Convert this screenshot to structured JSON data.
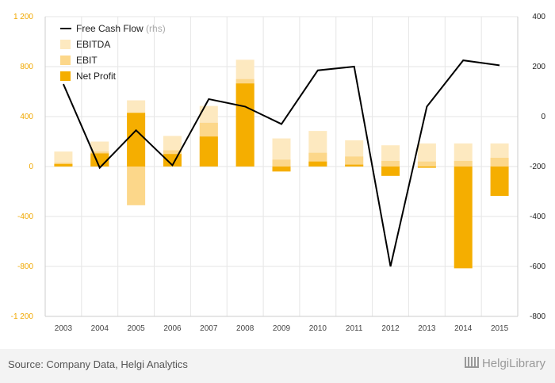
{
  "chart_data": {
    "type": "bar",
    "categories": [
      "2003",
      "2004",
      "2005",
      "2006",
      "2007",
      "2008",
      "2009",
      "2010",
      "2011",
      "2012",
      "2013",
      "2014",
      "2015"
    ],
    "series": [
      {
        "name": "EBITDA",
        "kind": "bar",
        "color": "#fde9c0",
        "values": [
          120,
          200,
          530,
          245,
          485,
          855,
          225,
          285,
          210,
          170,
          185,
          185,
          185
        ]
      },
      {
        "name": "EBIT",
        "kind": "bar",
        "color": "#fcd78a",
        "values": [
          30,
          120,
          -310,
          130,
          350,
          700,
          55,
          110,
          80,
          45,
          40,
          45,
          70
        ]
      },
      {
        "name": "Net Profit",
        "kind": "bar",
        "color": "#f5ae00",
        "values": [
          20,
          105,
          430,
          100,
          240,
          665,
          -40,
          40,
          15,
          -75,
          -10,
          -815,
          -235
        ]
      },
      {
        "name": "Free Cash Flow",
        "suffix": "(rhs)",
        "kind": "line",
        "axis": "right",
        "color": "#000000",
        "values": [
          130,
          -205,
          -55,
          -195,
          70,
          40,
          -30,
          185,
          200,
          -600,
          40,
          225,
          205
        ]
      }
    ],
    "y_left": {
      "ticks": [
        1200,
        800,
        400,
        0,
        -400,
        -800,
        -1200
      ],
      "labels": [
        "1 200",
        "800",
        "400",
        "0",
        "-400",
        "-800",
        "-1 200"
      ],
      "range": [
        -1200,
        1200
      ]
    },
    "y_right": {
      "ticks": [
        400,
        200,
        0,
        -200,
        -400,
        -600,
        -800
      ],
      "labels": [
        "400",
        "200",
        "0",
        "-200",
        "-400",
        "-600",
        "-800"
      ],
      "range": [
        -800,
        400
      ]
    },
    "grid": true,
    "legend_position": "top-left"
  },
  "footer": {
    "source": "Source: Company Data, Helgi Analytics",
    "brand": "HelgiLibrary"
  }
}
